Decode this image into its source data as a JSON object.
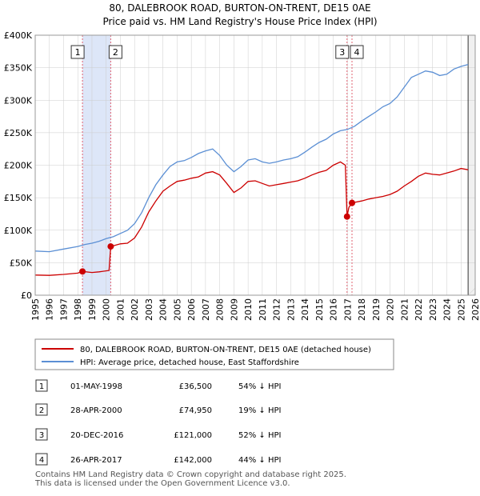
{
  "chart_data": {
    "type": "line",
    "title": "80, DALEBROOK ROAD, BURTON-ON-TRENT, DE15 0AE",
    "subtitle": "Price paid vs. HM Land Registry's House Price Index (HPI)",
    "xlim": [
      1995,
      2026
    ],
    "ylim": [
      0,
      400000
    ],
    "x_ticks": [
      1995,
      1996,
      1997,
      1998,
      1999,
      2000,
      2001,
      2002,
      2003,
      2004,
      2005,
      2006,
      2007,
      2008,
      2009,
      2010,
      2011,
      2012,
      2013,
      2014,
      2015,
      2016,
      2017,
      2018,
      2019,
      2020,
      2021,
      2022,
      2023,
      2024,
      2025,
      2026
    ],
    "y_ticks": [
      {
        "value": 0,
        "label": "£0"
      },
      {
        "value": 50000,
        "label": "£50K"
      },
      {
        "value": 100000,
        "label": "£100K"
      },
      {
        "value": 150000,
        "label": "£150K"
      },
      {
        "value": 200000,
        "label": "£200K"
      },
      {
        "value": 250000,
        "label": "£250K"
      },
      {
        "value": 300000,
        "label": "£300K"
      },
      {
        "value": 350000,
        "label": "£350K"
      },
      {
        "value": 400000,
        "label": "£400K"
      }
    ],
    "series": [
      {
        "name": "80, DALEBROOK ROAD, BURTON-ON-TRENT, DE15 0AE (detached house)",
        "color": "#cc0000",
        "points": [
          [
            1995.0,
            31000
          ],
          [
            1996.0,
            30500
          ],
          [
            1997.0,
            32000
          ],
          [
            1998.0,
            34000
          ],
          [
            1998.33,
            36500
          ],
          [
            1999.0,
            35000
          ],
          [
            1999.5,
            36000
          ],
          [
            2000.2,
            38000
          ],
          [
            2000.32,
            74950
          ],
          [
            2001.0,
            79000
          ],
          [
            2001.5,
            80000
          ],
          [
            2002.0,
            88000
          ],
          [
            2002.5,
            105000
          ],
          [
            2003.0,
            128000
          ],
          [
            2003.5,
            145000
          ],
          [
            2004.0,
            160000
          ],
          [
            2004.5,
            168000
          ],
          [
            2005.0,
            175000
          ],
          [
            2005.5,
            177000
          ],
          [
            2006.0,
            180000
          ],
          [
            2006.5,
            182000
          ],
          [
            2007.0,
            188000
          ],
          [
            2007.5,
            190000
          ],
          [
            2008.0,
            185000
          ],
          [
            2008.5,
            172000
          ],
          [
            2009.0,
            158000
          ],
          [
            2009.5,
            165000
          ],
          [
            2010.0,
            175000
          ],
          [
            2010.5,
            176000
          ],
          [
            2011.0,
            172000
          ],
          [
            2011.5,
            168000
          ],
          [
            2012.0,
            170000
          ],
          [
            2012.5,
            172000
          ],
          [
            2013.0,
            174000
          ],
          [
            2013.5,
            176000
          ],
          [
            2014.0,
            180000
          ],
          [
            2014.5,
            185000
          ],
          [
            2015.0,
            189000
          ],
          [
            2015.5,
            192000
          ],
          [
            2016.0,
            200000
          ],
          [
            2016.5,
            205000
          ],
          [
            2016.85,
            200000
          ],
          [
            2016.97,
            121000
          ],
          [
            2017.1,
            135000
          ],
          [
            2017.32,
            142000
          ],
          [
            2018.0,
            145000
          ],
          [
            2018.5,
            148000
          ],
          [
            2019.0,
            150000
          ],
          [
            2019.5,
            152000
          ],
          [
            2020.0,
            155000
          ],
          [
            2020.5,
            160000
          ],
          [
            2021.0,
            168000
          ],
          [
            2021.5,
            175000
          ],
          [
            2022.0,
            183000
          ],
          [
            2022.5,
            188000
          ],
          [
            2023.0,
            186000
          ],
          [
            2023.5,
            185000
          ],
          [
            2024.0,
            188000
          ],
          [
            2024.5,
            191000
          ],
          [
            2025.0,
            195000
          ],
          [
            2025.5,
            193000
          ]
        ]
      },
      {
        "name": "HPI: Average price, detached house, East Staffordshire",
        "color": "#5b8fd4",
        "points": [
          [
            1995.0,
            68000
          ],
          [
            1996.0,
            67000
          ],
          [
            1997.0,
            71000
          ],
          [
            1998.0,
            75000
          ],
          [
            1998.5,
            78000
          ],
          [
            1999.0,
            80000
          ],
          [
            1999.5,
            83000
          ],
          [
            2000.0,
            87000
          ],
          [
            2000.5,
            90000
          ],
          [
            2001.0,
            95000
          ],
          [
            2001.5,
            100000
          ],
          [
            2002.0,
            110000
          ],
          [
            2002.5,
            127000
          ],
          [
            2003.0,
            150000
          ],
          [
            2003.5,
            170000
          ],
          [
            2004.0,
            185000
          ],
          [
            2004.5,
            198000
          ],
          [
            2005.0,
            205000
          ],
          [
            2005.5,
            207000
          ],
          [
            2006.0,
            212000
          ],
          [
            2006.5,
            218000
          ],
          [
            2007.0,
            222000
          ],
          [
            2007.5,
            225000
          ],
          [
            2008.0,
            215000
          ],
          [
            2008.5,
            200000
          ],
          [
            2009.0,
            190000
          ],
          [
            2009.5,
            198000
          ],
          [
            2010.0,
            208000
          ],
          [
            2010.5,
            210000
          ],
          [
            2011.0,
            205000
          ],
          [
            2011.5,
            203000
          ],
          [
            2012.0,
            205000
          ],
          [
            2012.5,
            208000
          ],
          [
            2013.0,
            210000
          ],
          [
            2013.5,
            213000
          ],
          [
            2014.0,
            220000
          ],
          [
            2014.5,
            228000
          ],
          [
            2015.0,
            235000
          ],
          [
            2015.5,
            240000
          ],
          [
            2016.0,
            248000
          ],
          [
            2016.5,
            253000
          ],
          [
            2017.0,
            255000
          ],
          [
            2017.5,
            260000
          ],
          [
            2018.0,
            268000
          ],
          [
            2018.5,
            275000
          ],
          [
            2019.0,
            282000
          ],
          [
            2019.5,
            290000
          ],
          [
            2020.0,
            295000
          ],
          [
            2020.5,
            305000
          ],
          [
            2021.0,
            320000
          ],
          [
            2021.5,
            335000
          ],
          [
            2022.0,
            340000
          ],
          [
            2022.5,
            345000
          ],
          [
            2023.0,
            343000
          ],
          [
            2023.5,
            338000
          ],
          [
            2024.0,
            340000
          ],
          [
            2024.5,
            348000
          ],
          [
            2025.0,
            352000
          ],
          [
            2025.5,
            355000
          ]
        ]
      }
    ],
    "sales": [
      {
        "id": "1",
        "x": 1998.33,
        "value": 36500
      },
      {
        "id": "2",
        "x": 2000.32,
        "value": 74950
      },
      {
        "id": "3",
        "x": 2016.97,
        "value": 121000
      },
      {
        "id": "4",
        "x": 2017.32,
        "value": 142000
      }
    ],
    "shaded_span": [
      1998.33,
      2000.32
    ],
    "forecast_from": 2025.5
  },
  "legend": {
    "property": "80, DALEBROOK ROAD, BURTON-ON-TRENT, DE15 0AE (detached house)",
    "hpi": "HPI: Average price, detached house, East Staffordshire"
  },
  "table": [
    {
      "id": "1",
      "date": "01-MAY-1998",
      "price": "£36,500",
      "hpi": "54% ↓ HPI"
    },
    {
      "id": "2",
      "date": "28-APR-2000",
      "price": "£74,950",
      "hpi": "19% ↓ HPI"
    },
    {
      "id": "3",
      "date": "20-DEC-2016",
      "price": "£121,000",
      "hpi": "52% ↓ HPI"
    },
    {
      "id": "4",
      "date": "26-APR-2017",
      "price": "£142,000",
      "hpi": "44% ↓ HPI"
    }
  ],
  "footer": {
    "line1": "Contains HM Land Registry data © Crown copyright and database right 2025.",
    "line2": "This data is licensed under the Open Government Licence v3.0."
  },
  "colors": {
    "property": "#cc0000",
    "hpi": "#5b8fd4",
    "shade": "#dde6f8",
    "grid": "#cccccc"
  }
}
